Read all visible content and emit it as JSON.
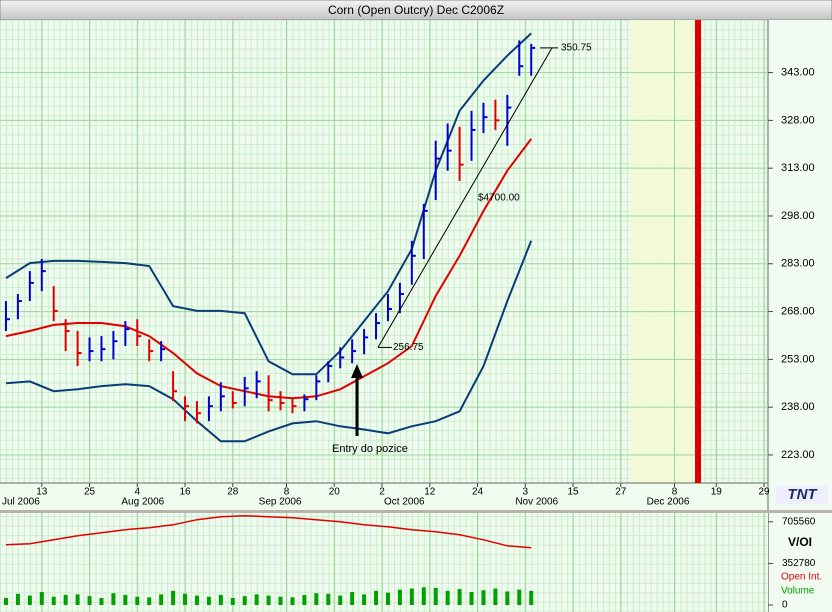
{
  "chart_data": [
    {
      "type": "ohlc",
      "title": "Corn (Open Outcry) Dec C2006Z",
      "x": [
        "2006-07-05",
        "2006-07-07",
        "2006-07-11",
        "2006-07-13",
        "2006-07-17",
        "2006-07-19",
        "2006-07-21",
        "2006-07-25",
        "2006-07-27",
        "2006-07-31",
        "2006-08-02",
        "2006-08-04",
        "2006-08-08",
        "2006-08-10",
        "2006-08-14",
        "2006-08-16",
        "2006-08-18",
        "2006-08-22",
        "2006-08-24",
        "2006-08-28",
        "2006-08-30",
        "2006-09-01",
        "2006-09-05",
        "2006-09-07",
        "2006-09-11",
        "2006-09-13",
        "2006-09-15",
        "2006-09-19",
        "2006-09-21",
        "2006-09-25",
        "2006-09-27",
        "2006-09-29",
        "2006-10-03",
        "2006-10-05",
        "2006-10-09",
        "2006-10-11",
        "2006-10-13",
        "2006-10-17",
        "2006-10-19",
        "2006-10-23",
        "2006-10-25",
        "2006-10-27",
        "2006-10-31",
        "2006-11-02",
        "2006-11-06"
      ],
      "high": [
        271.3,
        273.5,
        280.7,
        284.5,
        276.0,
        265.6,
        261.9,
        259.9,
        260.3,
        261.9,
        265.0,
        265.6,
        259.3,
        258.7,
        249.3,
        241.4,
        239.9,
        241.4,
        245.8,
        243.0,
        247.5,
        249.3,
        248.0,
        243.0,
        241.0,
        242.0,
        248.0,
        252.4,
        256.8,
        259.3,
        262.5,
        267.5,
        273.5,
        277.0,
        290.2,
        301.8,
        321.6,
        327.0,
        326.0,
        331.0,
        333.5,
        334.5,
        336.0,
        353.1,
        352.0
      ],
      "low": [
        261.9,
        265.6,
        271.3,
        274.4,
        265.0,
        255.6,
        250.9,
        252.4,
        252.4,
        253.0,
        257.2,
        257.2,
        252.4,
        252.4,
        239.9,
        233.6,
        232.9,
        233.6,
        236.7,
        237.6,
        238.3,
        240.8,
        236.7,
        237.0,
        236.1,
        236.7,
        240.2,
        245.8,
        250.2,
        251.8,
        254.6,
        259.3,
        265.0,
        267.5,
        276.4,
        284.5,
        303.0,
        312.2,
        309.0,
        315.3,
        324.0,
        325.0,
        320.0,
        342.0,
        342.0
      ],
      "close": [
        265.6,
        271.3,
        277.0,
        280.7,
        268.2,
        261.9,
        255.0,
        255.6,
        256.2,
        258.7,
        262.5,
        260.3,
        255.6,
        256.2,
        243.0,
        238.3,
        236.1,
        238.3,
        241.4,
        239.3,
        243.9,
        246.1,
        240.2,
        239.3,
        238.3,
        240.5,
        246.1,
        250.9,
        253.6,
        255.6,
        259.9,
        264.4,
        268.8,
        273.5,
        285.5,
        299.6,
        316.0,
        318.5,
        314.1,
        325.0,
        329.0,
        328.0,
        332.0,
        345.0,
        350.75
      ],
      "up_color": "#0000d0",
      "down_color": "#e00000",
      "bands": {
        "x": [
          "2006-07-05",
          "2006-07-11",
          "2006-07-17",
          "2006-07-21",
          "2006-07-27",
          "2006-08-02",
          "2006-08-08",
          "2006-08-14",
          "2006-08-18",
          "2006-08-24",
          "2006-08-30",
          "2006-09-05",
          "2006-09-11",
          "2006-09-15",
          "2006-09-21",
          "2006-09-27",
          "2006-10-03",
          "2006-10-09",
          "2006-10-13",
          "2006-10-19",
          "2006-10-25",
          "2006-10-31",
          "2006-11-06"
        ],
        "series": [
          {
            "color": "#0b3c78",
            "values": [
              278.5,
              283.2,
              283.9,
              283.9,
              283.6,
              283.2,
              282.3,
              269.7,
              268.2,
              268.2,
              267.5,
              252.4,
              248.3,
              248.3,
              255.6,
              265.0,
              274.4,
              287.6,
              312.2,
              331.0,
              340.5,
              348.3,
              355.3
            ]
          },
          {
            "color": "#e00000",
            "values": [
              260.3,
              261.9,
              263.8,
              264.4,
              264.4,
              263.4,
              260.3,
              255.0,
              248.6,
              244.6,
              243.0,
              241.4,
              240.8,
              241.4,
              243.6,
              247.7,
              251.8,
              257.2,
              272.9,
              285.5,
              299.6,
              312.2,
              322.2
            ]
          },
          {
            "color": "#0b3c78",
            "values": [
              245.5,
              246.1,
              243.0,
              243.6,
              244.6,
              245.2,
              244.6,
              240.5,
              233.6,
              227.3,
              227.3,
              230.4,
              232.9,
              233.6,
              232.0,
              231.0,
              229.8,
              232.0,
              233.6,
              236.7,
              250.9,
              271.3,
              290.2
            ]
          }
        ]
      },
      "ylim": [
        214.2,
        359.5
      ],
      "yticks": [
        {
          "value": 223,
          "label": "223.00"
        },
        {
          "value": 238,
          "label": "238.00"
        },
        {
          "value": 253,
          "label": "253.00"
        },
        {
          "value": 268,
          "label": "268.00"
        },
        {
          "value": 283,
          "label": "283.00"
        },
        {
          "value": 298,
          "label": "298.00"
        },
        {
          "value": 313,
          "label": "313.00"
        },
        {
          "value": 328,
          "label": "328.00"
        },
        {
          "value": 343,
          "label": "343.00"
        }
      ],
      "xlim": [
        "2006-07-04",
        "2006-12-29"
      ],
      "xticks": [
        {
          "value": "2006-07-13",
          "label": "13"
        },
        {
          "value": "2006-07-25",
          "label": "25"
        },
        {
          "value": "2006-08-04",
          "label": "4"
        },
        {
          "value": "2006-08-16",
          "label": "16"
        },
        {
          "value": "2006-08-28",
          "label": "28"
        },
        {
          "value": "2006-09-08",
          "label": "8"
        },
        {
          "value": "2006-09-20",
          "label": "20"
        },
        {
          "value": "2006-10-02",
          "label": "2"
        },
        {
          "value": "2006-10-12",
          "label": "12"
        },
        {
          "value": "2006-10-24",
          "label": "24"
        },
        {
          "value": "2006-11-03",
          "label": "3"
        },
        {
          "value": "2006-11-15",
          "label": "15"
        },
        {
          "value": "2006-11-27",
          "label": "27"
        },
        {
          "value": "2006-12-08",
          "label": "8"
        },
        {
          "value": "2006-12-19",
          "label": "19"
        },
        {
          "value": "2006-12-29",
          "label": "29"
        }
      ],
      "xmonths": [
        {
          "value": "2006-07-01",
          "label": "Jul 2006"
        },
        {
          "value": "2006-08-01",
          "label": "Aug 2006"
        },
        {
          "value": "2006-09-01",
          "label": "Sep 2006"
        },
        {
          "value": "2006-10-01",
          "label": "Oct 2006"
        },
        {
          "value": "2006-11-01",
          "label": "Nov 2006"
        },
        {
          "value": "2006-12-01",
          "label": "Dec 2006"
        }
      ],
      "grid": true,
      "trendline": {
        "start": 256.75,
        "end": 350.75,
        "label": "$4700.00"
      },
      "annotation": "Entry do pozice"
    },
    {
      "type": "volume",
      "title": "V/OI",
      "series": [
        {
          "name": "Open Int.",
          "color": "#e00000",
          "kind": "line",
          "x": [
            "2006-07-05",
            "2006-07-11",
            "2006-07-17",
            "2006-07-21",
            "2006-07-27",
            "2006-08-02",
            "2006-08-08",
            "2006-08-14",
            "2006-08-18",
            "2006-08-24",
            "2006-08-30",
            "2006-09-05",
            "2006-09-11",
            "2006-09-15",
            "2006-09-21",
            "2006-09-27",
            "2006-10-03",
            "2006-10-09",
            "2006-10-13",
            "2006-10-19",
            "2006-10-25",
            "2006-10-31",
            "2006-11-06"
          ],
          "values": [
            510000,
            519000,
            553000,
            587000,
            612000,
            638000,
            655000,
            680000,
            723000,
            748000,
            757000,
            748000,
            740000,
            723000,
            706000,
            680000,
            663000,
            638000,
            621000,
            595000,
            553000,
            502000,
            485000
          ]
        },
        {
          "name": "Volume",
          "color": "#00a000",
          "kind": "bar",
          "x": [
            "2006-07-05",
            "2006-07-07",
            "2006-07-11",
            "2006-07-13",
            "2006-07-17",
            "2006-07-19",
            "2006-07-21",
            "2006-07-25",
            "2006-07-27",
            "2006-07-31",
            "2006-08-02",
            "2006-08-04",
            "2006-08-08",
            "2006-08-10",
            "2006-08-14",
            "2006-08-16",
            "2006-08-18",
            "2006-08-22",
            "2006-08-24",
            "2006-08-28",
            "2006-08-30",
            "2006-09-01",
            "2006-09-05",
            "2006-09-07",
            "2006-09-11",
            "2006-09-13",
            "2006-09-15",
            "2006-09-19",
            "2006-09-21",
            "2006-09-25",
            "2006-09-27",
            "2006-09-29",
            "2006-10-03",
            "2006-10-05",
            "2006-10-09",
            "2006-10-11",
            "2006-10-13",
            "2006-10-17",
            "2006-10-19",
            "2006-10-23",
            "2006-10-25",
            "2006-10-27",
            "2006-10-31",
            "2006-11-02",
            "2006-11-06"
          ],
          "values": [
            60000,
            95000,
            80000,
            110000,
            70000,
            85000,
            90000,
            75000,
            60000,
            100000,
            85000,
            70000,
            65000,
            90000,
            120000,
            95000,
            80000,
            70000,
            85000,
            60000,
            75000,
            90000,
            80000,
            70000,
            65000,
            85000,
            100000,
            95000,
            80000,
            110000,
            90000,
            120000,
            105000,
            130000,
            140000,
            150000,
            145000,
            120000,
            135000,
            110000,
            125000,
            140000,
            115000,
            130000,
            120000
          ]
        }
      ],
      "ylim": [
        0,
        780000
      ],
      "yticks": [
        0,
        352780,
        705560
      ]
    }
  ],
  "logo": "TNT"
}
